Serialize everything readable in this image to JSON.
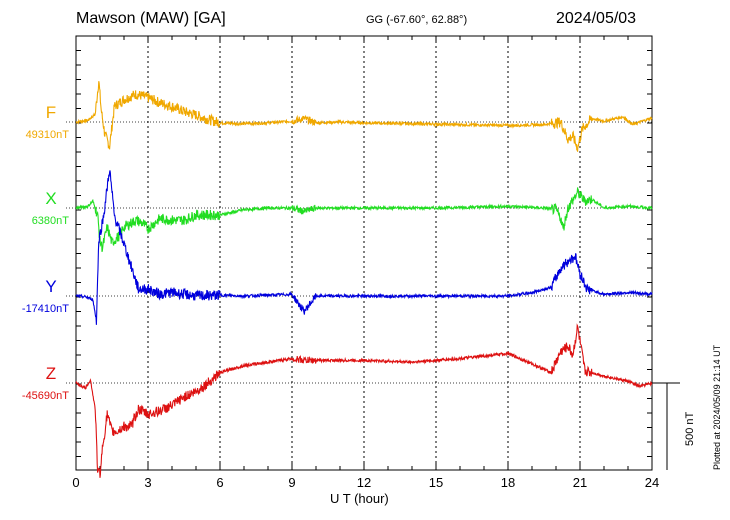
{
  "chart_data": {
    "type": "line",
    "title": "Mawson (MAW)  [GA]",
    "coordinates": "GG (-67.60°,  62.88°)",
    "date": "2024/05/03",
    "xlabel": "U T (hour)",
    "xlim": [
      0,
      24
    ],
    "x_ticks": [
      "0",
      "3",
      "6",
      "9",
      "12",
      "15",
      "18",
      "21",
      "24"
    ],
    "scale_label": "500 nT",
    "plotted_note": "Plotted at 2024/05/09 21:14 UT",
    "series": [
      {
        "name": "F",
        "baseline_label": "49310nT",
        "color": "#f0a800",
        "x": [
          0,
          0.5,
          0.8,
          0.95,
          1.05,
          1.2,
          1.4,
          1.6,
          2.0,
          2.5,
          3.0,
          3.5,
          4.0,
          4.5,
          5.0,
          5.5,
          6.0,
          7.0,
          8.0,
          9.0,
          9.5,
          10.0,
          11.0,
          12.0,
          14.0,
          16.0,
          18.0,
          19.5,
          20.2,
          20.5,
          20.7,
          20.9,
          21.1,
          21.5,
          22.0,
          22.8,
          23.2,
          24.0
        ],
        "y": [
          0,
          10,
          45,
          240,
          70,
          -70,
          -140,
          90,
          130,
          160,
          140,
          110,
          90,
          60,
          40,
          15,
          -5,
          -10,
          -5,
          5,
          20,
          -5,
          0,
          -5,
          -10,
          -15,
          -20,
          -15,
          0,
          -100,
          -80,
          -150,
          -40,
          20,
          5,
          30,
          -15,
          25
        ]
      },
      {
        "name": "X",
        "baseline_label": "6380nT",
        "color": "#22dd22",
        "x": [
          0,
          0.5,
          0.7,
          0.9,
          1.0,
          1.1,
          1.3,
          1.5,
          1.8,
          2.0,
          2.5,
          2.8,
          3.0,
          3.5,
          4.0,
          4.5,
          5.0,
          6.0,
          7.0,
          8.0,
          9.0,
          9.5,
          10.0,
          12.0,
          15.0,
          18.0,
          19.5,
          20.0,
          20.2,
          20.3,
          20.5,
          20.9,
          21.2,
          21.5,
          22.0,
          23.0,
          24.0
        ],
        "y": [
          0,
          10,
          40,
          -40,
          -190,
          -230,
          -110,
          -200,
          -160,
          -110,
          -70,
          -90,
          -120,
          -60,
          -70,
          -70,
          -40,
          -40,
          -10,
          0,
          0,
          -20,
          0,
          0,
          0,
          10,
          0,
          -10,
          -60,
          -120,
          0,
          90,
          40,
          50,
          0,
          10,
          0
        ]
      },
      {
        "name": "Y",
        "baseline_label": "-17410nT",
        "color": "#0000dd",
        "x": [
          0,
          0.4,
          0.7,
          0.85,
          0.95,
          1.05,
          1.15,
          1.4,
          1.6,
          1.8,
          2.0,
          2.3,
          2.6,
          3.0,
          3.5,
          4.0,
          5.0,
          6.0,
          7.0,
          8.0,
          9.0,
          9.5,
          10.0,
          12.0,
          14.0,
          16.0,
          18.0,
          19.0,
          19.8,
          20.2,
          20.5,
          20.8,
          21.0,
          21.3,
          22.0,
          23.0,
          24.0
        ],
        "y": [
          0,
          -5,
          -20,
          -140,
          320,
          390,
          460,
          730,
          460,
          380,
          300,
          170,
          40,
          40,
          10,
          20,
          0,
          5,
          0,
          5,
          10,
          -90,
          0,
          0,
          0,
          0,
          0,
          20,
          50,
          160,
          200,
          230,
          130,
          40,
          10,
          20,
          10
        ]
      },
      {
        "name": "Z",
        "baseline_label": "-45690nT",
        "color": "#dd1111",
        "x": [
          0,
          0.4,
          0.6,
          0.8,
          0.9,
          1.0,
          1.1,
          1.3,
          1.5,
          1.7,
          2.0,
          2.3,
          2.6,
          3.0,
          3.5,
          4.0,
          4.5,
          5.0,
          5.5,
          6.0,
          7.0,
          8.0,
          9.0,
          9.5,
          10.0,
          12.0,
          14.0,
          16.0,
          18.0,
          19.0,
          19.8,
          20.2,
          20.5,
          20.7,
          20.9,
          21.2,
          22.0,
          23.0,
          23.5,
          24.0
        ],
        "y": [
          0,
          -30,
          20,
          -150,
          -500,
          -520,
          -380,
          -180,
          -280,
          -280,
          -250,
          -250,
          -150,
          -180,
          -160,
          -130,
          -80,
          -50,
          0,
          60,
          100,
          120,
          140,
          130,
          130,
          130,
          120,
          140,
          170,
          110,
          60,
          180,
          210,
          160,
          320,
          70,
          40,
          10,
          -20,
          0
        ]
      }
    ]
  }
}
